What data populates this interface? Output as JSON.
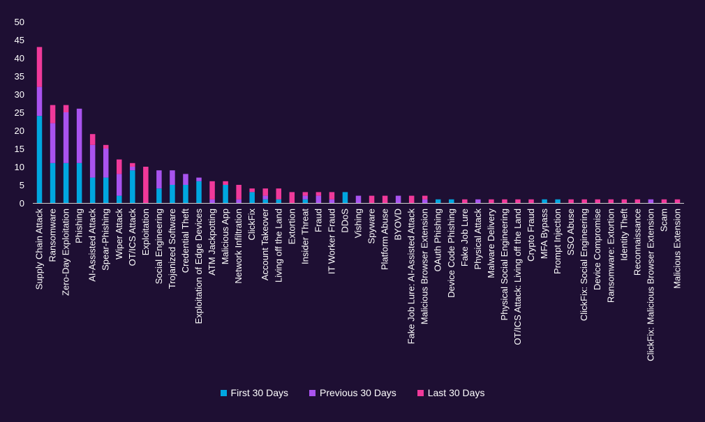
{
  "chart_data": {
    "type": "bar",
    "stacked": true,
    "title": "",
    "xlabel": "",
    "ylabel": "",
    "ylim": [
      0,
      50
    ],
    "yticks": [
      0,
      5,
      10,
      15,
      20,
      25,
      30,
      35,
      40,
      45,
      50
    ],
    "grid": false,
    "legend_position": "bottom-center",
    "categories": [
      "Supply Chain Attack",
      "Ransomware",
      "Zero-Day Exploitation",
      "Phishing",
      "AI-Assisted Attack",
      "Spear-Phishing",
      "Wiper Attack",
      "OT/ICS Attack",
      "Exploitation",
      "Social Engineering",
      "Trojanized Software",
      "Credential Theft",
      "Exploitation of Edge Devices",
      "ATM Jackpotting",
      "Malicious App",
      "Network Infiltration",
      "ClickFix",
      "Account Takeover",
      "Living off the Land",
      "Extortion",
      "Insider Threat",
      "Fraud",
      "IT Worker Fraud",
      "DDoS",
      "Vishing",
      "Spyware",
      "Platform Abuse",
      "BYOVD",
      "Fake Job Lure: AI-Assisted Attack",
      "Malicious Browser Extension",
      "OAuth Phishing",
      "Device Code Phishing",
      "Fake Job Lure",
      "Physical Attack",
      "Malware Delivery",
      "Physical Social Engineering",
      "OT/ICS Attack: Living off the Land",
      "Crypto Fraud",
      "MFA Bypass",
      "Prompt Injection",
      "SSO Abuse",
      "ClickFix: Social Engineering",
      "Device Compromise",
      "Ransomware: Extortion",
      "Identity Theft",
      "Reconnaissance",
      "ClickFix: Malicious Browser Extension",
      "Scam",
      "Malicious Extension"
    ],
    "series": [
      {
        "name": "First 30 Days",
        "color": "#00a6e0",
        "values": [
          24,
          11,
          11,
          11,
          7,
          7,
          2,
          9,
          0,
          4,
          5,
          5,
          6,
          0,
          5,
          0,
          3,
          1,
          1,
          0,
          1,
          0,
          0,
          3,
          0,
          0,
          0,
          0,
          0,
          0,
          1,
          1,
          0,
          0,
          0,
          0,
          0,
          0,
          1,
          1,
          0,
          0,
          0,
          0,
          0,
          0,
          0,
          0,
          0
        ]
      },
      {
        "name": "Previous 30 Days",
        "color": "#a953ef",
        "values": [
          8,
          11,
          14,
          15,
          9,
          8,
          6,
          1,
          0,
          5,
          4,
          3,
          1,
          1,
          0,
          1,
          0,
          1,
          0,
          0,
          1,
          2,
          1,
          0,
          2,
          0,
          0,
          2,
          0,
          1,
          0,
          0,
          0,
          1,
          0,
          0,
          0,
          0,
          0,
          0,
          0,
          0,
          0,
          0,
          0,
          0,
          1,
          0,
          0
        ]
      },
      {
        "name": "Last 30 Days",
        "color": "#f0399a",
        "values": [
          11,
          5,
          2,
          0,
          3,
          1,
          4,
          1,
          10,
          0,
          0,
          0,
          0,
          5,
          1,
          4,
          1,
          2,
          3,
          3,
          1,
          1,
          2,
          0,
          0,
          2,
          2,
          0,
          2,
          1,
          0,
          0,
          1,
          0,
          1,
          1,
          1,
          1,
          0,
          0,
          1,
          1,
          1,
          1,
          1,
          1,
          0,
          1,
          1
        ]
      }
    ]
  }
}
